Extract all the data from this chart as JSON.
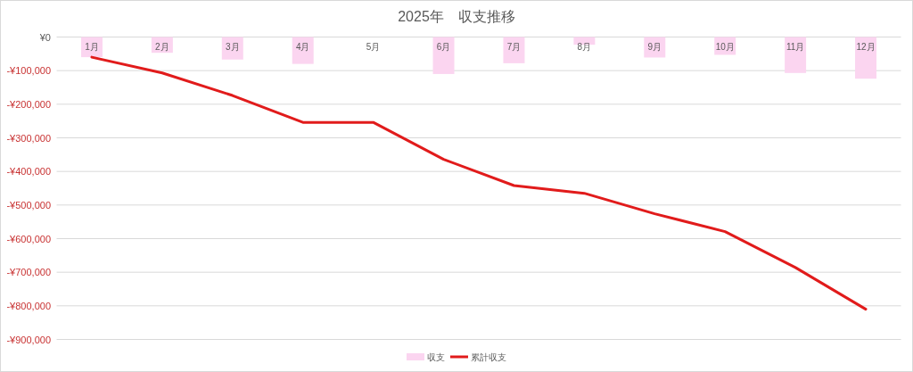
{
  "chart_data": {
    "type": "bar",
    "title": "2025年　収支推移",
    "categories": [
      "1月",
      "2月",
      "3月",
      "4月",
      "5月",
      "6月",
      "7月",
      "8月",
      "9月",
      "10月",
      "11月",
      "12月"
    ],
    "series": [
      {
        "name": "収支",
        "type": "bar",
        "color": "#fbd5f0",
        "values": [
          -60000,
          -47000,
          -67000,
          -80000,
          0,
          -110000,
          -78000,
          -23000,
          -61000,
          -53000,
          -107000,
          -124000
        ]
      },
      {
        "name": "累計収支",
        "type": "line",
        "color": "#e11b1b",
        "values": [
          -60000,
          -107000,
          -174000,
          -254000,
          -254000,
          -364000,
          -442000,
          -465000,
          -526000,
          -579000,
          -686000,
          -810000
        ]
      }
    ],
    "ylim": [
      -900000,
      0
    ],
    "yticks": [
      {
        "value": 0,
        "label": "¥0"
      },
      {
        "value": -100000,
        "label": "-¥100,000"
      },
      {
        "value": -200000,
        "label": "-¥200,000"
      },
      {
        "value": -300000,
        "label": "-¥300,000"
      },
      {
        "value": -400000,
        "label": "-¥400,000"
      },
      {
        "value": -500000,
        "label": "-¥500,000"
      },
      {
        "value": -600000,
        "label": "-¥600,000"
      },
      {
        "value": -700000,
        "label": "-¥700,000"
      },
      {
        "value": -800000,
        "label": "-¥800,000"
      },
      {
        "value": -900000,
        "label": "-¥900,000"
      }
    ],
    "grid": "y",
    "legend": "bottom"
  }
}
